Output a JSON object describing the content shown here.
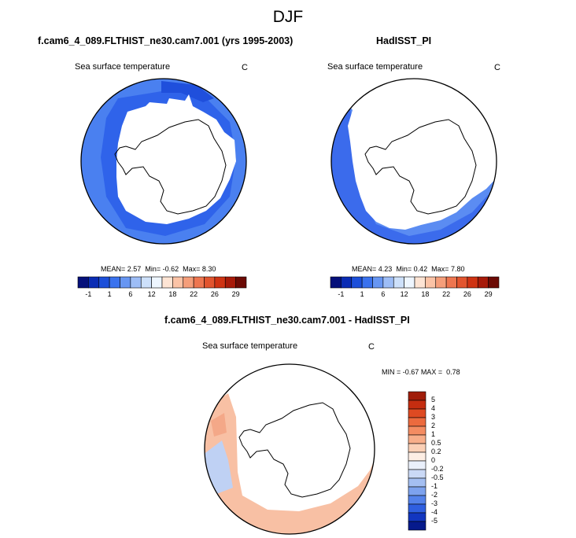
{
  "figure": {
    "title": "DJF"
  },
  "chart_data": [
    {
      "type": "map",
      "panel_title": "f.cam6_4_089.FLTHIST_ne30.cam7.001 (yrs 1995-2003)",
      "variable": "Sea surface temperature",
      "units": "C",
      "projection": "south polar stereographic",
      "stats": {
        "mean_label": "MEAN=",
        "mean": "2.57",
        "min_label": "Min=",
        "min": "-0.62",
        "max_label": "Max=",
        "max": "8.30"
      },
      "colorbar": {
        "orientation": "horizontal",
        "tick_labels": [
          "-1",
          "1",
          "6",
          "12",
          "18",
          "22",
          "26",
          "29"
        ],
        "colors": [
          "#05107a",
          "#0a2cb4",
          "#1c4fd9",
          "#3a72ee",
          "#6796f2",
          "#9dbdf6",
          "#cde0fa",
          "#eef6ff",
          "#fde4d4",
          "#fbc3a6",
          "#f59e7a",
          "#ee7650",
          "#e2552f",
          "#cf3313",
          "#a71a09",
          "#6b0a04"
        ]
      },
      "field_description_colors": {
        "outer_band": "#4a80f0",
        "inner_band": "#2f63ea",
        "cold_patches": "#1f4fdc"
      }
    },
    {
      "type": "map",
      "panel_title": "HadISST_PI",
      "variable": "Sea surface temperature",
      "units": "C",
      "projection": "south polar stereographic",
      "stats": {
        "mean_label": "MEAN=",
        "mean": "4.23",
        "min_label": "Min=",
        "min": "0.42",
        "max_label": "Max=",
        "max": "7.80"
      },
      "colorbar": {
        "orientation": "horizontal",
        "tick_labels": [
          "-1",
          "1",
          "6",
          "12",
          "18",
          "22",
          "26",
          "29"
        ],
        "colors": [
          "#05107a",
          "#0a2cb4",
          "#1c4fd9",
          "#3a72ee",
          "#6796f2",
          "#9dbdf6",
          "#cde0fa",
          "#eef6ff",
          "#fde4d4",
          "#fbc3a6",
          "#f59e7a",
          "#ee7650",
          "#e2552f",
          "#cf3313",
          "#a71a09",
          "#6b0a04"
        ]
      },
      "field_description_colors": {
        "outer_band": "#5b8cf2",
        "inner_band": "#3b6bec"
      }
    },
    {
      "type": "map",
      "panel_title": "f.cam6_4_089.FLTHIST_ne30.cam7.001 - HadISST_PI",
      "variable": "Sea surface temperature",
      "units": "C",
      "projection": "south polar stereographic",
      "stats": {
        "min_label": "MIN =",
        "min": "-0.67",
        "max_label": "MAX =",
        "max": "0.78"
      },
      "colorbar": {
        "orientation": "vertical",
        "tick_labels": [
          "5",
          "4",
          "3",
          "2",
          "1",
          "0.5",
          "0.2",
          "0",
          "-0.2",
          "-0.5",
          "-1",
          "-2",
          "-3",
          "-4",
          "-5"
        ],
        "colors": [
          "#a01d0a",
          "#c52d10",
          "#de4a22",
          "#ec6a3e",
          "#f48c62",
          "#f8ae8a",
          "#fbd0b6",
          "#fdeee4",
          "#eaf0fb",
          "#cad9f6",
          "#a4bff2",
          "#7da2ee",
          "#5482ea",
          "#2f5fe0",
          "#1236c0",
          "#061a8c"
        ]
      },
      "field_description_colors": {
        "warm_anomaly": "#f8c0a4",
        "warm_anomaly_strong": "#f4a888",
        "cold_anomaly": "#bfd1f4"
      }
    }
  ]
}
